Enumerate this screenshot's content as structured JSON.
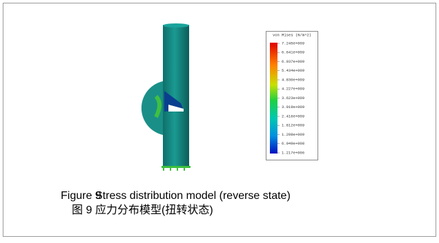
{
  "figure": {
    "legend": {
      "title": "von Mises (N/m^2)",
      "values": [
        "7.245e+009",
        "6.641e+009",
        "6.037e+009",
        "5.434e+009",
        "4.830e+009",
        "4.227e+009",
        "3.623e+009",
        "3.019e+009",
        "2.416e+009",
        "1.812e+009",
        "1.208e+009",
        "6.049e+008",
        "1.217e+006"
      ]
    }
  },
  "caption": {
    "en": {
      "label": "Figure 9",
      "text": "Stress distribution model (reverse state)"
    },
    "zh": {
      "label": "图 9",
      "text": "应力分布模型(扭转状态)"
    }
  }
}
